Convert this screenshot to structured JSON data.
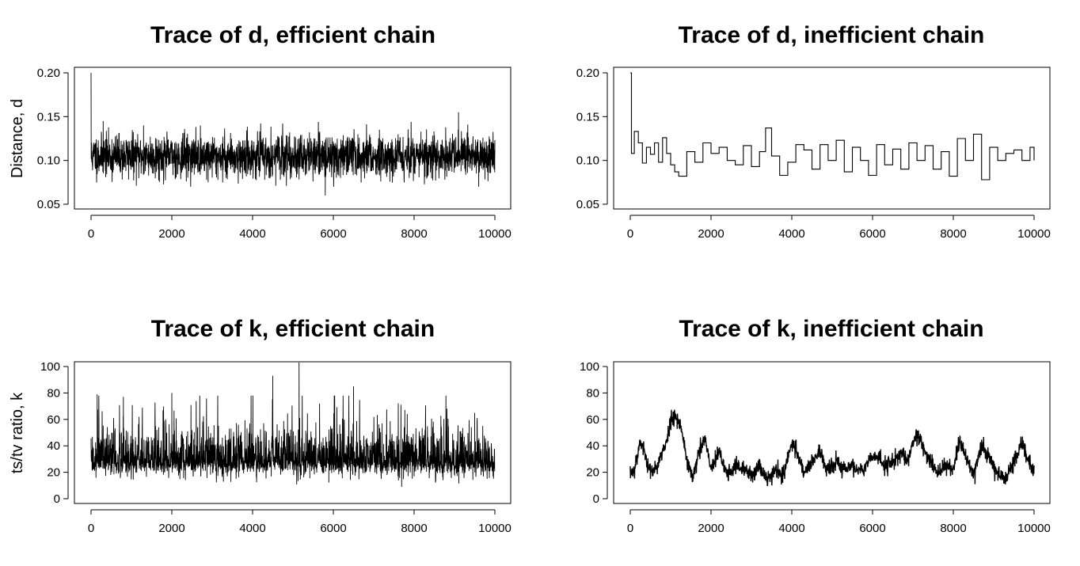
{
  "chart_data": [
    {
      "type": "line",
      "title": "Trace of d, efficient chain",
      "ylabel": "Distance, d",
      "xlabel": "",
      "xlim": [
        0,
        10000
      ],
      "ylim": [
        0.05,
        0.2
      ],
      "xticks": [
        "0",
        "2000",
        "4000",
        "6000",
        "8000",
        "10000"
      ],
      "yticks": [
        "0.05",
        "0.10",
        "0.15",
        "0.20"
      ],
      "grid": false,
      "series": [
        {
          "pattern": "rapidly mixing noise",
          "start": 0.2,
          "center": 0.105,
          "spread": 0.012,
          "min": 0.06,
          "max": 0.154,
          "x": [
            0,
            10,
            20,
            100,
            300,
            1300,
            2900,
            5800,
            9100,
            9500,
            10000
          ],
          "y": [
            0.2,
            0.118,
            0.098,
            0.12,
            0.145,
            0.14,
            0.075,
            0.06,
            0.155,
            0.11,
            0.105
          ]
        }
      ]
    },
    {
      "type": "line",
      "title": "Trace of d, inefficient chain",
      "ylabel": "",
      "xlabel": "",
      "xlim": [
        0,
        10000
      ],
      "ylim": [
        0.05,
        0.2
      ],
      "xticks": [
        "0",
        "2000",
        "4000",
        "6000",
        "8000",
        "10000"
      ],
      "yticks": [
        "0.05",
        "0.10",
        "0.15",
        "0.20"
      ],
      "grid": false,
      "series": [
        {
          "pattern": "step function (sticky chain)",
          "x": [
            0,
            30,
            100,
            200,
            300,
            400,
            500,
            600,
            700,
            800,
            900,
            1000,
            1100,
            1200,
            1400,
            1600,
            1800,
            2000,
            2200,
            2400,
            2600,
            2800,
            3000,
            3200,
            3350,
            3500,
            3700,
            3900,
            4100,
            4300,
            4500,
            4700,
            4900,
            5100,
            5300,
            5500,
            5700,
            5900,
            6100,
            6300,
            6500,
            6700,
            6900,
            7100,
            7300,
            7500,
            7700,
            7900,
            8100,
            8300,
            8500,
            8700,
            8900,
            9100,
            9300,
            9500,
            9700,
            9900,
            10000
          ],
          "y": [
            0.2,
            0.108,
            0.133,
            0.12,
            0.097,
            0.115,
            0.107,
            0.12,
            0.098,
            0.126,
            0.108,
            0.095,
            0.087,
            0.082,
            0.11,
            0.098,
            0.12,
            0.108,
            0.115,
            0.1,
            0.095,
            0.117,
            0.093,
            0.11,
            0.137,
            0.105,
            0.083,
            0.098,
            0.118,
            0.112,
            0.09,
            0.118,
            0.1,
            0.123,
            0.087,
            0.115,
            0.1,
            0.083,
            0.118,
            0.095,
            0.113,
            0.09,
            0.12,
            0.1,
            0.117,
            0.09,
            0.11,
            0.082,
            0.125,
            0.1,
            0.13,
            0.078,
            0.115,
            0.1,
            0.108,
            0.112,
            0.1,
            0.115,
            0.1
          ]
        }
      ]
    },
    {
      "type": "line",
      "title": "Trace of k, efficient chain",
      "ylabel": "ts/tv ratio, k",
      "xlabel": "",
      "xlim": [
        0,
        10000
      ],
      "ylim": [
        0,
        100
      ],
      "xticks": [
        "0",
        "2000",
        "4000",
        "6000",
        "8000",
        "10000"
      ],
      "yticks": [
        "0",
        "20",
        "40",
        "60",
        "80",
        "100"
      ],
      "grid": false,
      "series": [
        {
          "pattern": "rapidly mixing noise with spikes",
          "center": 28,
          "min": 9,
          "x": [
            150,
            800,
            2000,
            4500,
            5150,
            6500,
            9500
          ],
          "y": [
            79,
            77,
            80,
            93,
            103,
            85,
            65
          ]
        }
      ]
    },
    {
      "type": "line",
      "title": "Trace of k, inefficient chain",
      "ylabel": "",
      "xlabel": "",
      "xlim": [
        0,
        10000
      ],
      "ylim": [
        0,
        100
      ],
      "xticks": [
        "0",
        "2000",
        "4000",
        "6000",
        "8000",
        "10000"
      ],
      "yticks": [
        "0",
        "20",
        "40",
        "60",
        "80",
        "100"
      ],
      "grid": false,
      "series": [
        {
          "pattern": "slowly wandering random walk",
          "x": [
            0,
            100,
            250,
            400,
            550,
            700,
            850,
            1000,
            1100,
            1250,
            1400,
            1550,
            1700,
            1850,
            2000,
            2200,
            2400,
            2600,
            2800,
            3000,
            3200,
            3400,
            3600,
            3800,
            4000,
            4100,
            4300,
            4500,
            4700,
            4900,
            5100,
            5300,
            5500,
            5700,
            5900,
            6100,
            6300,
            6500,
            6700,
            6900,
            7050,
            7200,
            7400,
            7600,
            7800,
            8000,
            8150,
            8300,
            8500,
            8700,
            8900,
            9100,
            9300,
            9500,
            9700,
            9850,
            10000
          ],
          "y": [
            20,
            22,
            44,
            30,
            18,
            28,
            38,
            58,
            65,
            55,
            30,
            15,
            35,
            45,
            22,
            35,
            18,
            25,
            22,
            18,
            25,
            15,
            22,
            18,
            42,
            38,
            20,
            28,
            35,
            20,
            28,
            22,
            25,
            20,
            30,
            32,
            25,
            28,
            35,
            30,
            50,
            42,
            30,
            20,
            25,
            22,
            45,
            32,
            18,
            40,
            30,
            20,
            15,
            28,
            42,
            30,
            20
          ]
        }
      ]
    }
  ]
}
